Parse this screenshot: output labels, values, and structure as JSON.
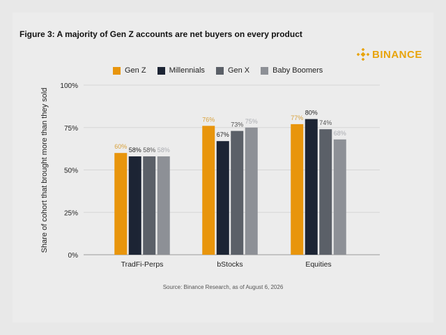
{
  "colors": {
    "page_bg": "#e8e8e8",
    "accent": "#e8a40c"
  },
  "brand": {
    "logo_text": "BINANCE",
    "icon": "binance-diamond-icon"
  },
  "chart_data": {
    "type": "bar",
    "title": "Figure 3: A majority of Gen Z accounts are net buyers on every product",
    "ylabel": "Share of cohort that brought more than they sold",
    "xlabel": "",
    "categories": [
      "TradFi-Perps",
      "bStocks",
      "Equities"
    ],
    "series": [
      {
        "name": "Gen Z",
        "color": "#e8950c",
        "values": [
          60,
          76,
          77
        ],
        "labels": [
          "60%",
          "76%",
          "77%"
        ]
      },
      {
        "name": "Millennials",
        "color": "#1c2434",
        "values": [
          58,
          67,
          80
        ],
        "labels": [
          "58%",
          "67%",
          "80%"
        ]
      },
      {
        "name": "Gen X",
        "color": "#5b6068",
        "values": [
          58,
          73,
          74
        ],
        "labels": [
          "58%",
          "73%",
          "74%"
        ]
      },
      {
        "name": "Baby Boomers",
        "color": "#8d9096",
        "values": [
          58,
          75,
          68
        ],
        "labels": [
          "58%",
          "75%",
          "68%"
        ]
      }
    ],
    "ylim": [
      0,
      100
    ],
    "yticks": [
      {
        "value": 0,
        "label": "0%"
      },
      {
        "value": 25,
        "label": "25%"
      },
      {
        "value": 50,
        "label": "50%"
      },
      {
        "value": 75,
        "label": "75%"
      },
      {
        "value": 100,
        "label": "100%"
      }
    ],
    "grid": true,
    "legend": "top",
    "source": "Source: Binance Research, as of August 6, 2026"
  }
}
